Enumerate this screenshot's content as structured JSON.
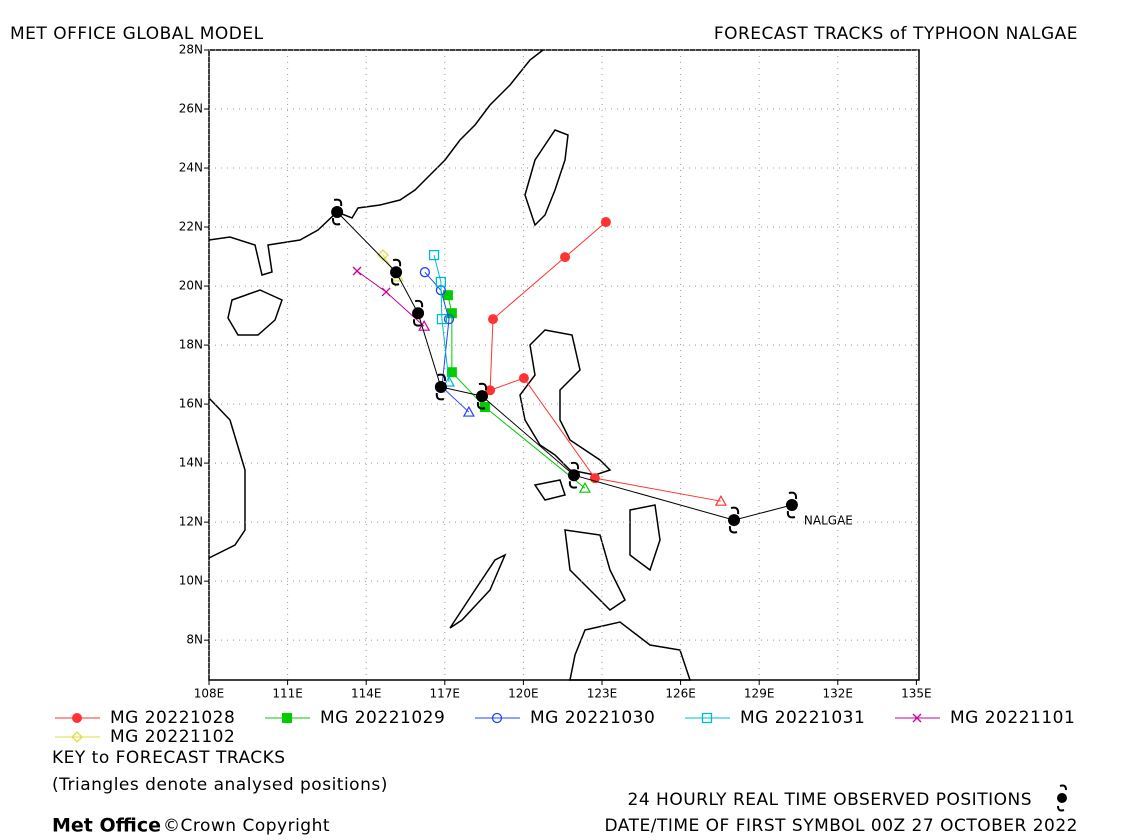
{
  "chart_data": {
    "type": "track-map",
    "title": "FORECAST TRACKS of TYPHOON NALGAE",
    "subtitle": "MET OFFICE GLOBAL MODEL",
    "xlim": [
      108,
      135.1
    ],
    "ylim": [
      6.65,
      28
    ],
    "xticks": [
      {
        "value": 108,
        "label": "108E"
      },
      {
        "value": 111,
        "label": "111E"
      },
      {
        "value": 114,
        "label": "114E"
      },
      {
        "value": 117,
        "label": "117E"
      },
      {
        "value": 120,
        "label": "120E"
      },
      {
        "value": 123,
        "label": "123E"
      },
      {
        "value": 126,
        "label": "126E"
      },
      {
        "value": 129,
        "label": "129E"
      },
      {
        "value": 132,
        "label": "132E"
      },
      {
        "value": 135,
        "label": "135E"
      }
    ],
    "yticks": [
      {
        "value": 8,
        "label": "8N"
      },
      {
        "value": 10,
        "label": "10N"
      },
      {
        "value": 12,
        "label": "12N"
      },
      {
        "value": 14,
        "label": "14N"
      },
      {
        "value": 16,
        "label": "16N"
      },
      {
        "value": 18,
        "label": "18N"
      },
      {
        "value": 20,
        "label": "20N"
      },
      {
        "value": 22,
        "label": "22N"
      },
      {
        "value": 24,
        "label": "24N"
      },
      {
        "value": 26,
        "label": "26N"
      },
      {
        "value": 28,
        "label": "28N"
      }
    ],
    "grid": true,
    "storm_label": "NALGAE",
    "observed": {
      "color": "#000000",
      "lon": [
        130.25,
        128.04,
        121.93,
        118.42,
        116.85,
        115.98,
        115.14,
        112.89
      ],
      "lat": [
        12.58,
        12.07,
        13.59,
        16.27,
        16.58,
        19.08,
        20.47,
        22.51
      ]
    },
    "series": [
      {
        "name": "MG 20221028",
        "color": "#ff3333",
        "marker": "circle-filled",
        "lon": [
          127.54,
          122.73,
          120.02,
          118.73,
          118.84,
          121.59,
          123.15
        ],
        "lat": [
          12.71,
          13.49,
          16.88,
          16.47,
          18.88,
          20.98,
          22.17
        ]
      },
      {
        "name": "MG 20221029",
        "color": "#00cc00",
        "marker": "square-filled",
        "lon": [
          122.35,
          118.53,
          117.27,
          117.27,
          117.12
        ],
        "lat": [
          13.15,
          15.9,
          17.08,
          19.08,
          19.69
        ]
      },
      {
        "name": "MG 20221030",
        "color": "#2244ff",
        "marker": "circle-open",
        "lon": [
          117.92,
          116.89,
          117.16,
          116.85,
          116.24
        ],
        "lat": [
          15.73,
          16.58,
          18.88,
          19.86,
          20.47
        ]
      },
      {
        "name": "MG 20221031",
        "color": "#00bbcc",
        "marker": "square-open",
        "lon": [
          117.16,
          116.89,
          116.85,
          116.59
        ],
        "lat": [
          16.75,
          18.88,
          20.14,
          21.05
        ]
      },
      {
        "name": "MG 20221101",
        "color": "#cc0099",
        "marker": "x",
        "lon": [
          116.21,
          114.76,
          113.65
        ],
        "lat": [
          18.64,
          19.8,
          20.51
        ]
      },
      {
        "name": "MG 20221102",
        "color": "#dddd44",
        "marker": "diamond-open",
        "lon": [
          115.21,
          114.64
        ],
        "lat": [
          20.31,
          21.05
        ]
      }
    ],
    "legend_title": "KEY to FORECAST TRACKS",
    "legend_note": "(Triangles denote analysed positions)",
    "observed_note": "24 HOURLY REAL TIME OBSERVED POSITIONS",
    "first_symbol_note": "DATE/TIME OF FIRST SYMBOL 00Z 27 OCTOBER 2022",
    "brand": "Met Office",
    "copyright": "©Crown Copyright"
  }
}
